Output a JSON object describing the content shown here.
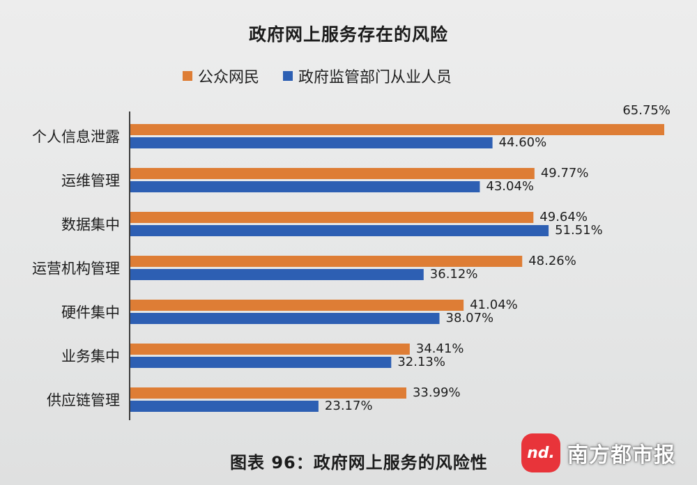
{
  "chart_data": {
    "type": "bar",
    "orientation": "horizontal",
    "title": "政府网上服务存在的风险",
    "categories": [
      "个人信息泄露",
      "运维管理",
      "数据集中",
      "运营机构管理",
      "硬件集中",
      "业务集中",
      "供应链管理"
    ],
    "series": [
      {
        "name": "公众网民",
        "color": "#de7d35",
        "values": [
          65.75,
          49.77,
          49.64,
          48.26,
          41.04,
          34.41,
          33.99
        ],
        "labels": [
          "65.75%",
          "49.77%",
          "49.64%",
          "48.26%",
          "41.04%",
          "34.41%",
          "33.99%"
        ]
      },
      {
        "name": "政府监管部门从业人员",
        "color": "#2d5fb3",
        "values": [
          44.6,
          43.04,
          51.51,
          36.12,
          38.07,
          32.13,
          23.17
        ],
        "labels": [
          "44.60%",
          "43.04%",
          "51.51%",
          "36.12%",
          "38.07%",
          "32.13%",
          "23.17%"
        ]
      }
    ],
    "grid": false,
    "legend_position": "top"
  },
  "caption": "图表 96：政府网上服务的风险性",
  "brand": {
    "logo_text": "nd.",
    "name": "南方都市报"
  }
}
